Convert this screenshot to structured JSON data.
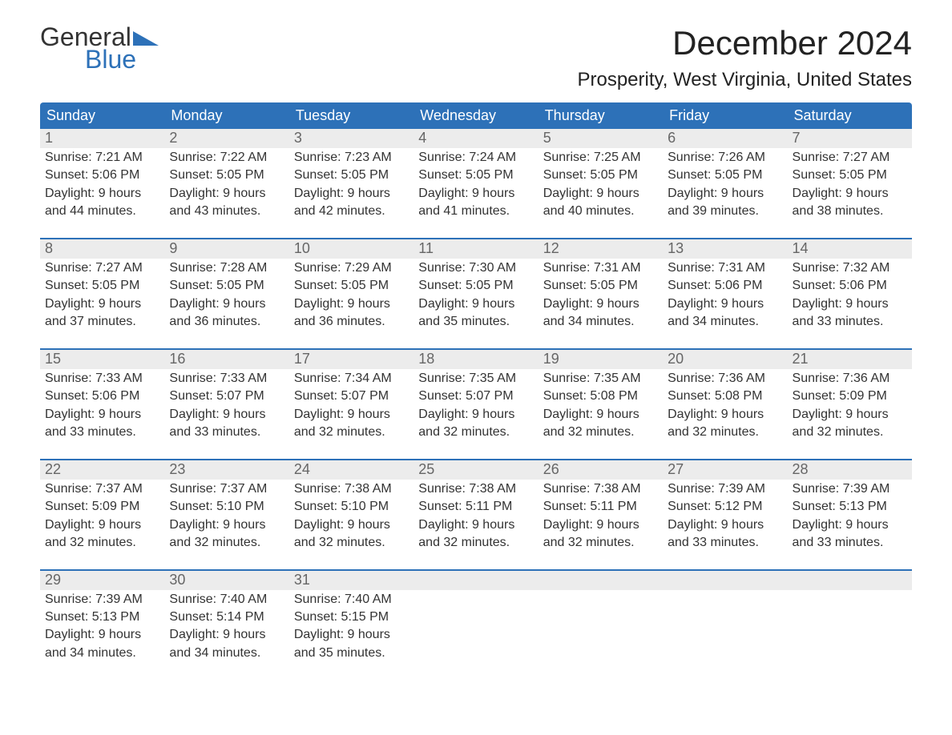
{
  "logo": {
    "text_top": "General",
    "text_bottom": "Blue",
    "accent_color": "#2d71b8"
  },
  "title": "December 2024",
  "location": "Prosperity, West Virginia, United States",
  "dow": [
    "Sunday",
    "Monday",
    "Tuesday",
    "Wednesday",
    "Thursday",
    "Friday",
    "Saturday"
  ],
  "colors": {
    "header_bg": "#2d71b8",
    "header_fg": "#ffffff",
    "daynum_bg": "#ececec",
    "daynum_fg": "#666666",
    "text": "#333333",
    "week_divider": "#2d71b8",
    "background": "#ffffff"
  },
  "font": {
    "family": "Arial",
    "title_size": 42,
    "location_size": 24,
    "dow_size": 18,
    "body_size": 16
  },
  "weeks": [
    [
      {
        "n": "1",
        "sunrise": "7:21 AM",
        "sunset": "5:06 PM",
        "dl1": "Daylight: 9 hours",
        "dl2": "and 44 minutes."
      },
      {
        "n": "2",
        "sunrise": "7:22 AM",
        "sunset": "5:05 PM",
        "dl1": "Daylight: 9 hours",
        "dl2": "and 43 minutes."
      },
      {
        "n": "3",
        "sunrise": "7:23 AM",
        "sunset": "5:05 PM",
        "dl1": "Daylight: 9 hours",
        "dl2": "and 42 minutes."
      },
      {
        "n": "4",
        "sunrise": "7:24 AM",
        "sunset": "5:05 PM",
        "dl1": "Daylight: 9 hours",
        "dl2": "and 41 minutes."
      },
      {
        "n": "5",
        "sunrise": "7:25 AM",
        "sunset": "5:05 PM",
        "dl1": "Daylight: 9 hours",
        "dl2": "and 40 minutes."
      },
      {
        "n": "6",
        "sunrise": "7:26 AM",
        "sunset": "5:05 PM",
        "dl1": "Daylight: 9 hours",
        "dl2": "and 39 minutes."
      },
      {
        "n": "7",
        "sunrise": "7:27 AM",
        "sunset": "5:05 PM",
        "dl1": "Daylight: 9 hours",
        "dl2": "and 38 minutes."
      }
    ],
    [
      {
        "n": "8",
        "sunrise": "7:27 AM",
        "sunset": "5:05 PM",
        "dl1": "Daylight: 9 hours",
        "dl2": "and 37 minutes."
      },
      {
        "n": "9",
        "sunrise": "7:28 AM",
        "sunset": "5:05 PM",
        "dl1": "Daylight: 9 hours",
        "dl2": "and 36 minutes."
      },
      {
        "n": "10",
        "sunrise": "7:29 AM",
        "sunset": "5:05 PM",
        "dl1": "Daylight: 9 hours",
        "dl2": "and 36 minutes."
      },
      {
        "n": "11",
        "sunrise": "7:30 AM",
        "sunset": "5:05 PM",
        "dl1": "Daylight: 9 hours",
        "dl2": "and 35 minutes."
      },
      {
        "n": "12",
        "sunrise": "7:31 AM",
        "sunset": "5:05 PM",
        "dl1": "Daylight: 9 hours",
        "dl2": "and 34 minutes."
      },
      {
        "n": "13",
        "sunrise": "7:31 AM",
        "sunset": "5:06 PM",
        "dl1": "Daylight: 9 hours",
        "dl2": "and 34 minutes."
      },
      {
        "n": "14",
        "sunrise": "7:32 AM",
        "sunset": "5:06 PM",
        "dl1": "Daylight: 9 hours",
        "dl2": "and 33 minutes."
      }
    ],
    [
      {
        "n": "15",
        "sunrise": "7:33 AM",
        "sunset": "5:06 PM",
        "dl1": "Daylight: 9 hours",
        "dl2": "and 33 minutes."
      },
      {
        "n": "16",
        "sunrise": "7:33 AM",
        "sunset": "5:07 PM",
        "dl1": "Daylight: 9 hours",
        "dl2": "and 33 minutes."
      },
      {
        "n": "17",
        "sunrise": "7:34 AM",
        "sunset": "5:07 PM",
        "dl1": "Daylight: 9 hours",
        "dl2": "and 32 minutes."
      },
      {
        "n": "18",
        "sunrise": "7:35 AM",
        "sunset": "5:07 PM",
        "dl1": "Daylight: 9 hours",
        "dl2": "and 32 minutes."
      },
      {
        "n": "19",
        "sunrise": "7:35 AM",
        "sunset": "5:08 PM",
        "dl1": "Daylight: 9 hours",
        "dl2": "and 32 minutes."
      },
      {
        "n": "20",
        "sunrise": "7:36 AM",
        "sunset": "5:08 PM",
        "dl1": "Daylight: 9 hours",
        "dl2": "and 32 minutes."
      },
      {
        "n": "21",
        "sunrise": "7:36 AM",
        "sunset": "5:09 PM",
        "dl1": "Daylight: 9 hours",
        "dl2": "and 32 minutes."
      }
    ],
    [
      {
        "n": "22",
        "sunrise": "7:37 AM",
        "sunset": "5:09 PM",
        "dl1": "Daylight: 9 hours",
        "dl2": "and 32 minutes."
      },
      {
        "n": "23",
        "sunrise": "7:37 AM",
        "sunset": "5:10 PM",
        "dl1": "Daylight: 9 hours",
        "dl2": "and 32 minutes."
      },
      {
        "n": "24",
        "sunrise": "7:38 AM",
        "sunset": "5:10 PM",
        "dl1": "Daylight: 9 hours",
        "dl2": "and 32 minutes."
      },
      {
        "n": "25",
        "sunrise": "7:38 AM",
        "sunset": "5:11 PM",
        "dl1": "Daylight: 9 hours",
        "dl2": "and 32 minutes."
      },
      {
        "n": "26",
        "sunrise": "7:38 AM",
        "sunset": "5:11 PM",
        "dl1": "Daylight: 9 hours",
        "dl2": "and 32 minutes."
      },
      {
        "n": "27",
        "sunrise": "7:39 AM",
        "sunset": "5:12 PM",
        "dl1": "Daylight: 9 hours",
        "dl2": "and 33 minutes."
      },
      {
        "n": "28",
        "sunrise": "7:39 AM",
        "sunset": "5:13 PM",
        "dl1": "Daylight: 9 hours",
        "dl2": "and 33 minutes."
      }
    ],
    [
      {
        "n": "29",
        "sunrise": "7:39 AM",
        "sunset": "5:13 PM",
        "dl1": "Daylight: 9 hours",
        "dl2": "and 34 minutes."
      },
      {
        "n": "30",
        "sunrise": "7:40 AM",
        "sunset": "5:14 PM",
        "dl1": "Daylight: 9 hours",
        "dl2": "and 34 minutes."
      },
      {
        "n": "31",
        "sunrise": "7:40 AM",
        "sunset": "5:15 PM",
        "dl1": "Daylight: 9 hours",
        "dl2": "and 35 minutes."
      },
      null,
      null,
      null,
      null
    ]
  ],
  "labels": {
    "sunrise_prefix": "Sunrise: ",
    "sunset_prefix": "Sunset: "
  }
}
